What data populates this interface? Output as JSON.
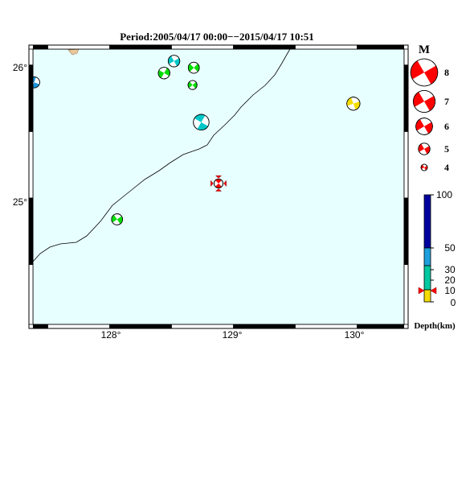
{
  "map": {
    "title": "Period:2005/04/17 00:00−−2015/04/17 10:51",
    "lat_labels": [
      "26°",
      "25°"
    ],
    "lon_labels": [
      "128°",
      "129°",
      "130°"
    ],
    "extent": {
      "lon_min": 127.38,
      "lon_max": 130.38,
      "lat_min": 24.05,
      "lat_max": 26.12
    },
    "ocean_color": "#e8ffff",
    "coast_color": "#000000"
  },
  "events": [
    {
      "id": "e1",
      "lon": 127.39,
      "lat": 25.87,
      "mag": 4.9,
      "fill": "#1e96dc"
    },
    {
      "id": "e2",
      "lon": 128.52,
      "lat": 26.03,
      "mag": 5.0,
      "fill": "#00c8c8"
    },
    {
      "id": "e3",
      "lon": 128.44,
      "lat": 25.94,
      "mag": 5.0,
      "fill": "#00dd00"
    },
    {
      "id": "e4",
      "lon": 128.68,
      "lat": 25.98,
      "mag": 4.9,
      "fill": "#00dd00"
    },
    {
      "id": "e5",
      "lon": 128.67,
      "lat": 25.85,
      "mag": 4.5,
      "fill": "#00dd00"
    },
    {
      "id": "e6",
      "lon": 128.74,
      "lat": 25.57,
      "mag": 5.8,
      "fill": "#00c8c8"
    },
    {
      "id": "e7",
      "lon": 129.97,
      "lat": 25.71,
      "mag": 5.3,
      "fill": "#f5dc00"
    },
    {
      "id": "e8",
      "lon": 128.06,
      "lat": 24.84,
      "mag": 4.9,
      "fill": "#00dd00"
    },
    {
      "id": "e9",
      "lon": 128.88,
      "lat": 25.11,
      "mag": 4.5,
      "fill": "#ff0000",
      "highlight": true
    }
  ],
  "legend": {
    "title": "M",
    "magnitudes": [
      "8",
      "7",
      "6",
      "5",
      "4"
    ],
    "color": "#ff0000"
  },
  "depth_scale": {
    "title": "Depth(km)",
    "labels": [
      "100",
      "50",
      "30",
      "20",
      "10",
      "0"
    ],
    "marker_depth": 10
  }
}
